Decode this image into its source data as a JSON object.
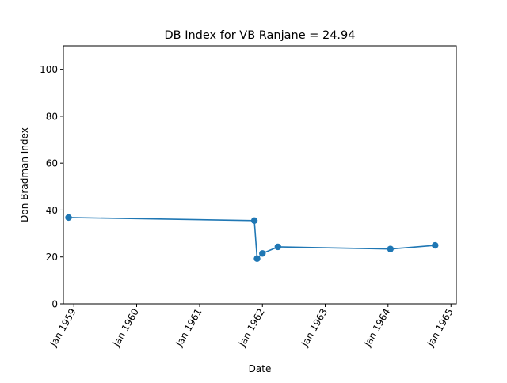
{
  "chart_data": {
    "type": "line",
    "title": "DB Index for VB Ranjane = 24.94",
    "xlabel": "Date",
    "ylabel": "Don Bradman Index",
    "xlim": [
      "1958-11-01",
      "1965-02-01"
    ],
    "ylim": [
      0,
      110
    ],
    "x_ticks": [
      {
        "date": "1959-01-01",
        "label": "Jan 1959"
      },
      {
        "date": "1960-01-01",
        "label": "Jan 1960"
      },
      {
        "date": "1961-01-01",
        "label": "Jan 1961"
      },
      {
        "date": "1962-01-01",
        "label": "Jan 1962"
      },
      {
        "date": "1963-01-01",
        "label": "Jan 1963"
      },
      {
        "date": "1964-01-01",
        "label": "Jan 1964"
      },
      {
        "date": "1965-01-01",
        "label": "Jan 1965"
      }
    ],
    "y_ticks": [
      0,
      20,
      40,
      60,
      80,
      100
    ],
    "grid": false,
    "color": "#1f77b4",
    "series": [
      {
        "points": [
          {
            "date": "1958-12-01",
            "value": 36.8
          },
          {
            "date": "1961-11-15",
            "value": 35.5
          },
          {
            "date": "1961-12-01",
            "value": 19.3
          },
          {
            "date": "1962-01-01",
            "value": 21.5
          },
          {
            "date": "1962-04-01",
            "value": 24.3
          },
          {
            "date": "1964-01-15",
            "value": 23.4
          },
          {
            "date": "1964-10-01",
            "value": 24.94
          }
        ]
      }
    ]
  }
}
